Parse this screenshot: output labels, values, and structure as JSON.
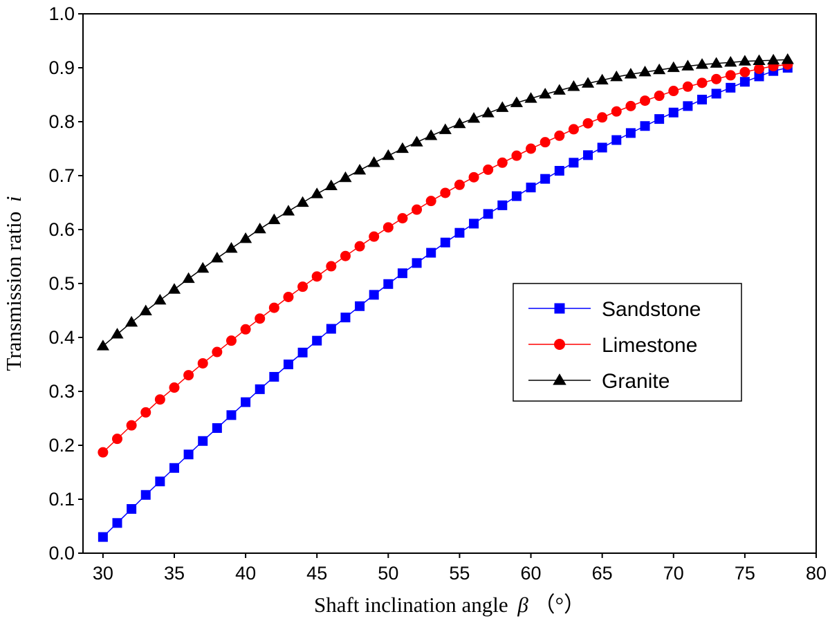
{
  "chart_data": {
    "type": "line",
    "title": "",
    "xlabel": "Shaft inclination angle",
    "xlabel_symbol": "β",
    "xlabel_unit": "（°）",
    "ylabel": "Transmission ratio",
    "ylabel_symbol": "i",
    "xlim": [
      28.6,
      80
    ],
    "ylim": [
      0,
      1.0
    ],
    "xticks": [
      30,
      35,
      40,
      45,
      50,
      55,
      60,
      65,
      70,
      75,
      80
    ],
    "yticks": [
      "0.0",
      "0.1",
      "0.2",
      "0.3",
      "0.4",
      "0.5",
      "0.6",
      "0.7",
      "0.8",
      "0.9",
      "1.0"
    ],
    "grid": false,
    "legend_position": "center-right",
    "x": [
      30,
      31,
      32,
      33,
      34,
      35,
      36,
      37,
      38,
      39,
      40,
      41,
      42,
      43,
      44,
      45,
      46,
      47,
      48,
      49,
      50,
      51,
      52,
      53,
      54,
      55,
      56,
      57,
      58,
      59,
      60,
      61,
      62,
      63,
      64,
      65,
      66,
      67,
      68,
      69,
      70,
      71,
      72,
      73,
      74,
      75,
      76,
      77,
      78
    ],
    "series": [
      {
        "name": "Sandstone",
        "color": "#0000ff",
        "marker": "square",
        "values": [
          0.03,
          0.056,
          0.082,
          0.108,
          0.133,
          0.158,
          0.183,
          0.208,
          0.232,
          0.256,
          0.28,
          0.304,
          0.327,
          0.35,
          0.372,
          0.394,
          0.416,
          0.437,
          0.458,
          0.479,
          0.499,
          0.519,
          0.538,
          0.557,
          0.576,
          0.594,
          0.611,
          0.629,
          0.645,
          0.662,
          0.678,
          0.694,
          0.709,
          0.724,
          0.738,
          0.752,
          0.766,
          0.779,
          0.792,
          0.805,
          0.817,
          0.829,
          0.841,
          0.852,
          0.863,
          0.874,
          0.884,
          0.894,
          0.9
        ]
      },
      {
        "name": "Limestone",
        "color": "#ff0000",
        "marker": "circle",
        "values": [
          0.187,
          0.212,
          0.237,
          0.261,
          0.285,
          0.307,
          0.33,
          0.352,
          0.373,
          0.394,
          0.415,
          0.435,
          0.455,
          0.475,
          0.494,
          0.513,
          0.532,
          0.551,
          0.569,
          0.587,
          0.604,
          0.621,
          0.637,
          0.653,
          0.668,
          0.683,
          0.697,
          0.711,
          0.724,
          0.737,
          0.75,
          0.762,
          0.774,
          0.786,
          0.797,
          0.808,
          0.819,
          0.829,
          0.839,
          0.848,
          0.857,
          0.865,
          0.872,
          0.879,
          0.886,
          0.892,
          0.898,
          0.903,
          0.906
        ]
      },
      {
        "name": "Granite",
        "color": "#000000",
        "marker": "triangle",
        "values": [
          0.384,
          0.406,
          0.428,
          0.449,
          0.469,
          0.489,
          0.509,
          0.528,
          0.547,
          0.565,
          0.583,
          0.601,
          0.618,
          0.634,
          0.65,
          0.666,
          0.681,
          0.696,
          0.71,
          0.724,
          0.737,
          0.75,
          0.762,
          0.774,
          0.785,
          0.796,
          0.806,
          0.816,
          0.826,
          0.835,
          0.843,
          0.851,
          0.858,
          0.865,
          0.871,
          0.877,
          0.883,
          0.888,
          0.892,
          0.896,
          0.9,
          0.903,
          0.906,
          0.908,
          0.91,
          0.912,
          0.913,
          0.914,
          0.915
        ]
      }
    ]
  }
}
